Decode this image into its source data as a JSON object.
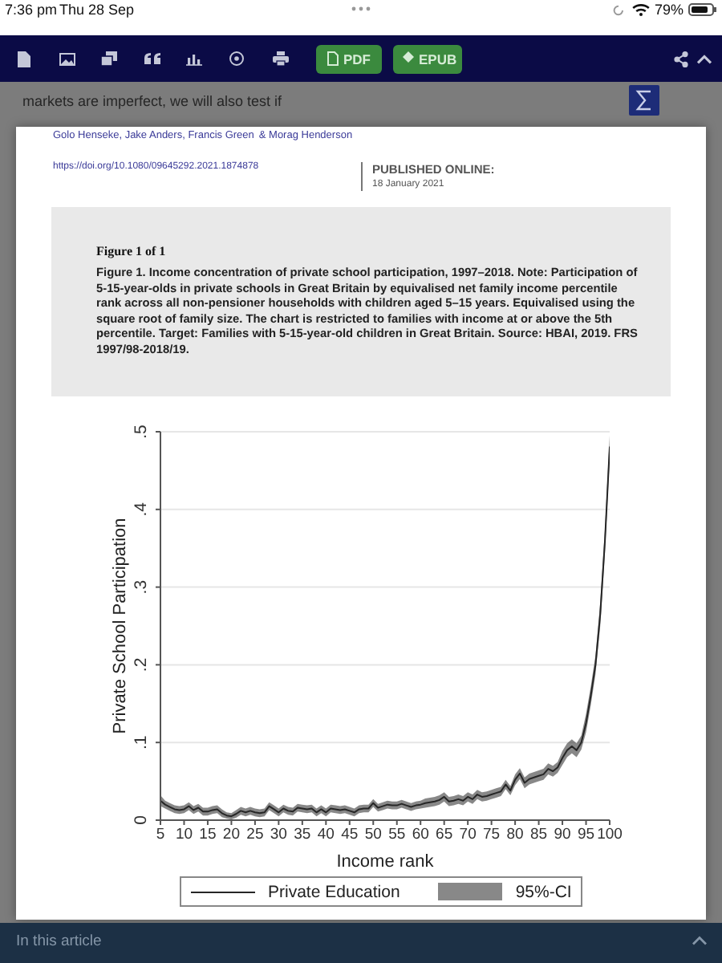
{
  "chart_data": {
    "type": "line",
    "title": "Figure 1 of 1",
    "subtitle": "Figure 1. Income concentration of private school participation, 1997–2018. Note: Participation of 5-15-year-olds in private schools in Great Britain by equivalised net family income percentile rank across all non-pensioner households with children aged 5–15 years. Equivalised using the square root of family size. The chart is restricted to families with income at or above the 5th percentile. Target: Families with 5-15-year-old children in Great Britain. Source: HBAI, 2019. FRS 1997/98-2018/19.",
    "xlabel": "Income rank",
    "ylabel": "Private School Participation",
    "annotations": [
      "7:36 pm",
      "Thu 28 Sep",
      "79%",
      "PDF",
      "EPUB",
      "markets are imperfect, we will also test if",
      "Golo Henseke",
      ", Jake Anders",
      ", Francis Green",
      "& Morag Henderson",
      "https://doi.org/10.1080/09645292.2021.1874878",
      "PUBLISHED ONLINE:",
      "18 January 2021",
      "95%-CI",
      "In this article"
    ],
    "x": [
      5,
      6,
      7,
      8,
      9,
      10,
      11,
      12,
      13,
      14,
      15,
      16,
      17,
      18,
      19,
      20,
      21,
      22,
      23,
      24,
      25,
      26,
      27,
      28,
      29,
      30,
      31,
      32,
      33,
      34,
      35,
      36,
      37,
      38,
      39,
      40,
      41,
      42,
      43,
      44,
      45,
      46,
      47,
      48,
      49,
      50,
      51,
      52,
      53,
      54,
      55,
      56,
      57,
      58,
      59,
      60,
      61,
      62,
      63,
      64,
      65,
      66,
      67,
      68,
      69,
      70,
      71,
      72,
      73,
      74,
      75,
      76,
      77,
      78,
      79,
      80,
      81,
      82,
      83,
      84,
      85,
      86,
      87,
      88,
      89,
      90,
      91,
      92,
      93,
      94,
      95,
      96,
      97,
      98,
      99,
      100
    ],
    "series": [
      {
        "name": "Private Education",
        "color": "#262626",
        "values": [
          0.025,
          0.02,
          0.017,
          0.014,
          0.013,
          0.014,
          0.018,
          0.013,
          0.016,
          0.011,
          0.011,
          0.013,
          0.014,
          0.009,
          0.006,
          0.005,
          0.008,
          0.012,
          0.01,
          0.012,
          0.01,
          0.009,
          0.01,
          0.018,
          0.014,
          0.01,
          0.015,
          0.012,
          0.011,
          0.016,
          0.015,
          0.014,
          0.015,
          0.01,
          0.014,
          0.01,
          0.015,
          0.014,
          0.013,
          0.014,
          0.012,
          0.01,
          0.014,
          0.015,
          0.015,
          0.022,
          0.016,
          0.018,
          0.02,
          0.019,
          0.019,
          0.021,
          0.019,
          0.017,
          0.019,
          0.02,
          0.022,
          0.023,
          0.024,
          0.026,
          0.03,
          0.024,
          0.025,
          0.027,
          0.025,
          0.03,
          0.027,
          0.033,
          0.03,
          0.031,
          0.033,
          0.035,
          0.037,
          0.046,
          0.038,
          0.052,
          0.06,
          0.048,
          0.053,
          0.055,
          0.057,
          0.059,
          0.066,
          0.063,
          0.068,
          0.08,
          0.09,
          0.095,
          0.09,
          0.1,
          0.125,
          0.16,
          0.2,
          0.265,
          0.36,
          0.48
        ],
        "lower": [
          0.018,
          0.015,
          0.012,
          0.009,
          0.008,
          0.009,
          0.013,
          0.008,
          0.011,
          0.006,
          0.006,
          0.008,
          0.009,
          0.004,
          0.002,
          0.001,
          0.003,
          0.007,
          0.005,
          0.007,
          0.005,
          0.004,
          0.005,
          0.013,
          0.009,
          0.005,
          0.01,
          0.007,
          0.006,
          0.011,
          0.01,
          0.009,
          0.01,
          0.005,
          0.009,
          0.005,
          0.01,
          0.009,
          0.008,
          0.009,
          0.007,
          0.005,
          0.009,
          0.01,
          0.01,
          0.017,
          0.011,
          0.013,
          0.015,
          0.014,
          0.014,
          0.016,
          0.014,
          0.012,
          0.014,
          0.015,
          0.016,
          0.017,
          0.018,
          0.02,
          0.024,
          0.018,
          0.019,
          0.021,
          0.019,
          0.024,
          0.021,
          0.027,
          0.024,
          0.025,
          0.027,
          0.029,
          0.031,
          0.04,
          0.032,
          0.045,
          0.053,
          0.041,
          0.046,
          0.048,
          0.05,
          0.052,
          0.059,
          0.056,
          0.061,
          0.071,
          0.081,
          0.086,
          0.081,
          0.091,
          0.113,
          0.148,
          0.188,
          0.25,
          0.345,
          0.465
        ],
        "upper": [
          0.032,
          0.025,
          0.022,
          0.019,
          0.018,
          0.019,
          0.023,
          0.018,
          0.021,
          0.016,
          0.016,
          0.018,
          0.019,
          0.014,
          0.01,
          0.009,
          0.013,
          0.017,
          0.015,
          0.017,
          0.015,
          0.014,
          0.015,
          0.023,
          0.019,
          0.015,
          0.02,
          0.017,
          0.016,
          0.021,
          0.02,
          0.019,
          0.02,
          0.015,
          0.019,
          0.015,
          0.02,
          0.019,
          0.018,
          0.019,
          0.017,
          0.015,
          0.019,
          0.02,
          0.02,
          0.027,
          0.021,
          0.023,
          0.025,
          0.024,
          0.024,
          0.026,
          0.024,
          0.022,
          0.024,
          0.025,
          0.028,
          0.029,
          0.03,
          0.032,
          0.036,
          0.03,
          0.031,
          0.033,
          0.031,
          0.036,
          0.033,
          0.039,
          0.036,
          0.037,
          0.039,
          0.041,
          0.043,
          0.052,
          0.044,
          0.059,
          0.067,
          0.055,
          0.06,
          0.062,
          0.064,
          0.066,
          0.073,
          0.07,
          0.075,
          0.089,
          0.099,
          0.104,
          0.099,
          0.109,
          0.137,
          0.172,
          0.212,
          0.28,
          0.375,
          0.495
        ]
      }
    ],
    "xlim": [
      5,
      100
    ],
    "xticks": [
      5,
      10,
      15,
      20,
      25,
      30,
      35,
      40,
      45,
      50,
      55,
      60,
      65,
      70,
      75,
      80,
      85,
      90,
      95,
      100
    ],
    "ylim": [
      0,
      0.5
    ],
    "yticks": [
      0,
      {
        "value": 0.1,
        "label": ".1"
      },
      {
        "value": 0.2,
        "label": ".2"
      },
      {
        "value": 0.3,
        "label": ".3"
      },
      {
        "value": 0.4,
        "label": ".4"
      },
      {
        "value": 0.5,
        "label": ".5"
      }
    ],
    "grid": "y",
    "legend": "bottom"
  }
}
